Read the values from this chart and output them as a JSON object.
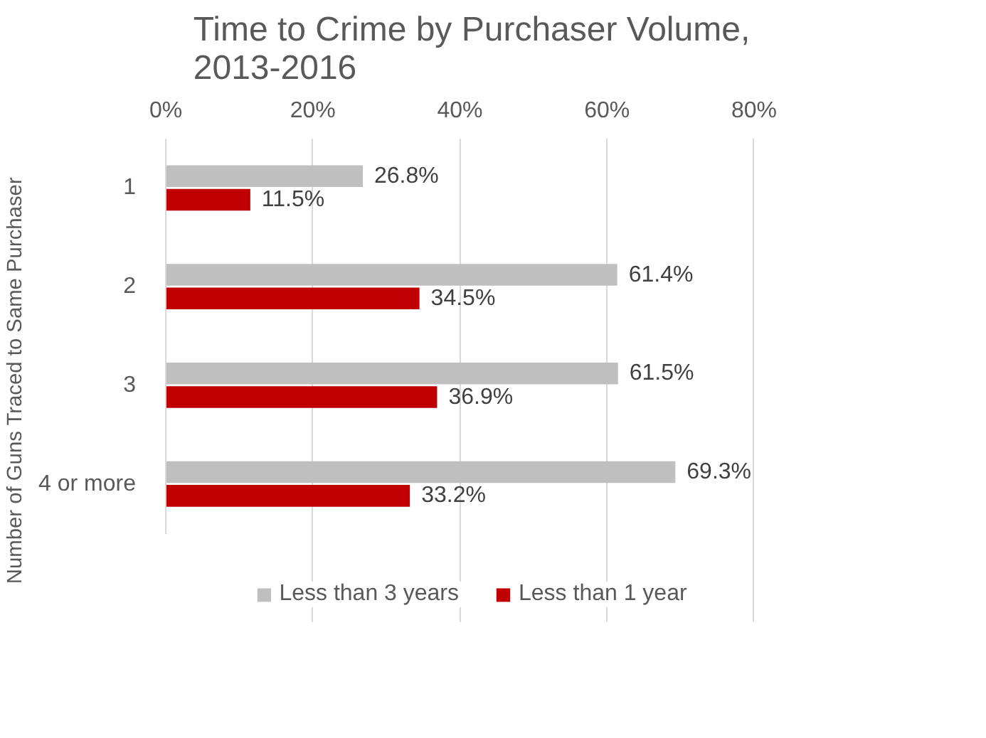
{
  "chart_data": {
    "type": "bar",
    "orientation": "horizontal",
    "title": "Time to Crime by Purchaser Volume, 2013-2016",
    "ylabel": "Number of Guns Traced to Same Purchaser",
    "categories": [
      "1",
      "2",
      "3",
      "4 or more"
    ],
    "series": [
      {
        "name": "Less than 3 years",
        "color": "#bfbfbf",
        "values": [
          26.8,
          61.4,
          61.5,
          69.3
        ],
        "value_labels": [
          "26.8%",
          "61.4%",
          "61.5%",
          "69.3%"
        ]
      },
      {
        "name": "Less than 1 year",
        "color": "#c00000",
        "values": [
          11.5,
          34.5,
          36.9,
          33.2
        ],
        "value_labels": [
          "11.5%",
          "34.5%",
          "36.9%",
          "33.2%"
        ]
      }
    ],
    "xlim": [
      0,
      80
    ],
    "xticks": [
      {
        "value": 0,
        "label": "0%"
      },
      {
        "value": 20,
        "label": "20%"
      },
      {
        "value": 40,
        "label": "40%"
      },
      {
        "value": 60,
        "label": "60%"
      },
      {
        "value": 80,
        "label": "80%"
      }
    ],
    "grid": "x",
    "legend": "bottom"
  }
}
